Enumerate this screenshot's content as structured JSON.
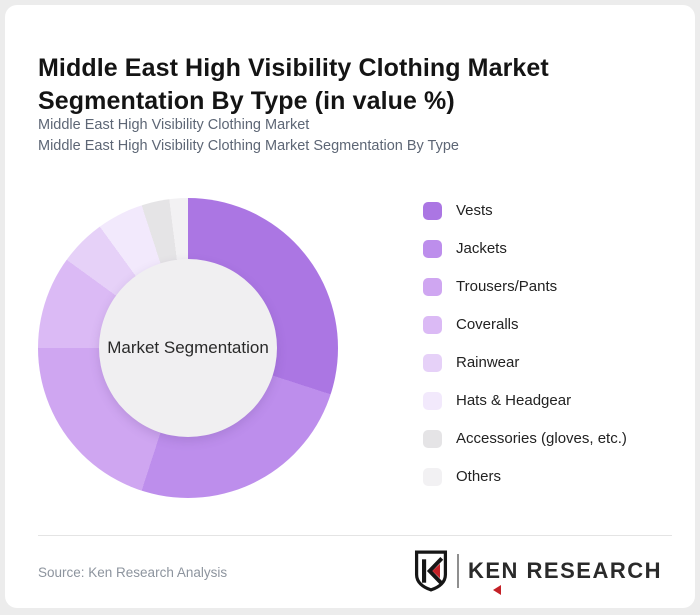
{
  "header": {
    "title": "Middle East High Visibility Clothing Market Segmentation By Type (in value %)",
    "subtitle_line1": "Middle East High Visibility Clothing Market",
    "subtitle_line2": "Middle East High Visibility Clothing Market Segmentation By Type"
  },
  "chart_data": {
    "type": "pie",
    "variant": "donut",
    "title": "Middle East High Visibility Clothing Market Segmentation By Type (in value %)",
    "center_label": "Market Segmentation",
    "unit": "value %",
    "start_angle_deg": 0,
    "direction": "clockwise",
    "legend_position": "right",
    "categories": [
      "Vests",
      "Jackets",
      "Trousers/Pants",
      "Coveralls",
      "Rainwear",
      "Hats & Headgear",
      "Accessories (gloves, etc.)",
      "Others"
    ],
    "values": [
      30,
      25,
      20,
      10,
      5,
      5,
      3,
      2
    ],
    "colors": [
      "#ab76e3",
      "#bd8eec",
      "#cfa6f1",
      "#dbbaf5",
      "#e6d1f8",
      "#f2e9fc",
      "#e5e4e6",
      "#f2f1f3"
    ],
    "hole_color": "#f0eff1"
  },
  "footer": {
    "source": "Source: Ken Research Analysis",
    "logo_first_letter": "K",
    "logo_rest": "EN RESEARCH"
  },
  "theme": {
    "accent_purple": "#ab76e3",
    "logo_red": "#c42127",
    "card_bg": "#ffffff",
    "page_bg": "#ececec"
  }
}
